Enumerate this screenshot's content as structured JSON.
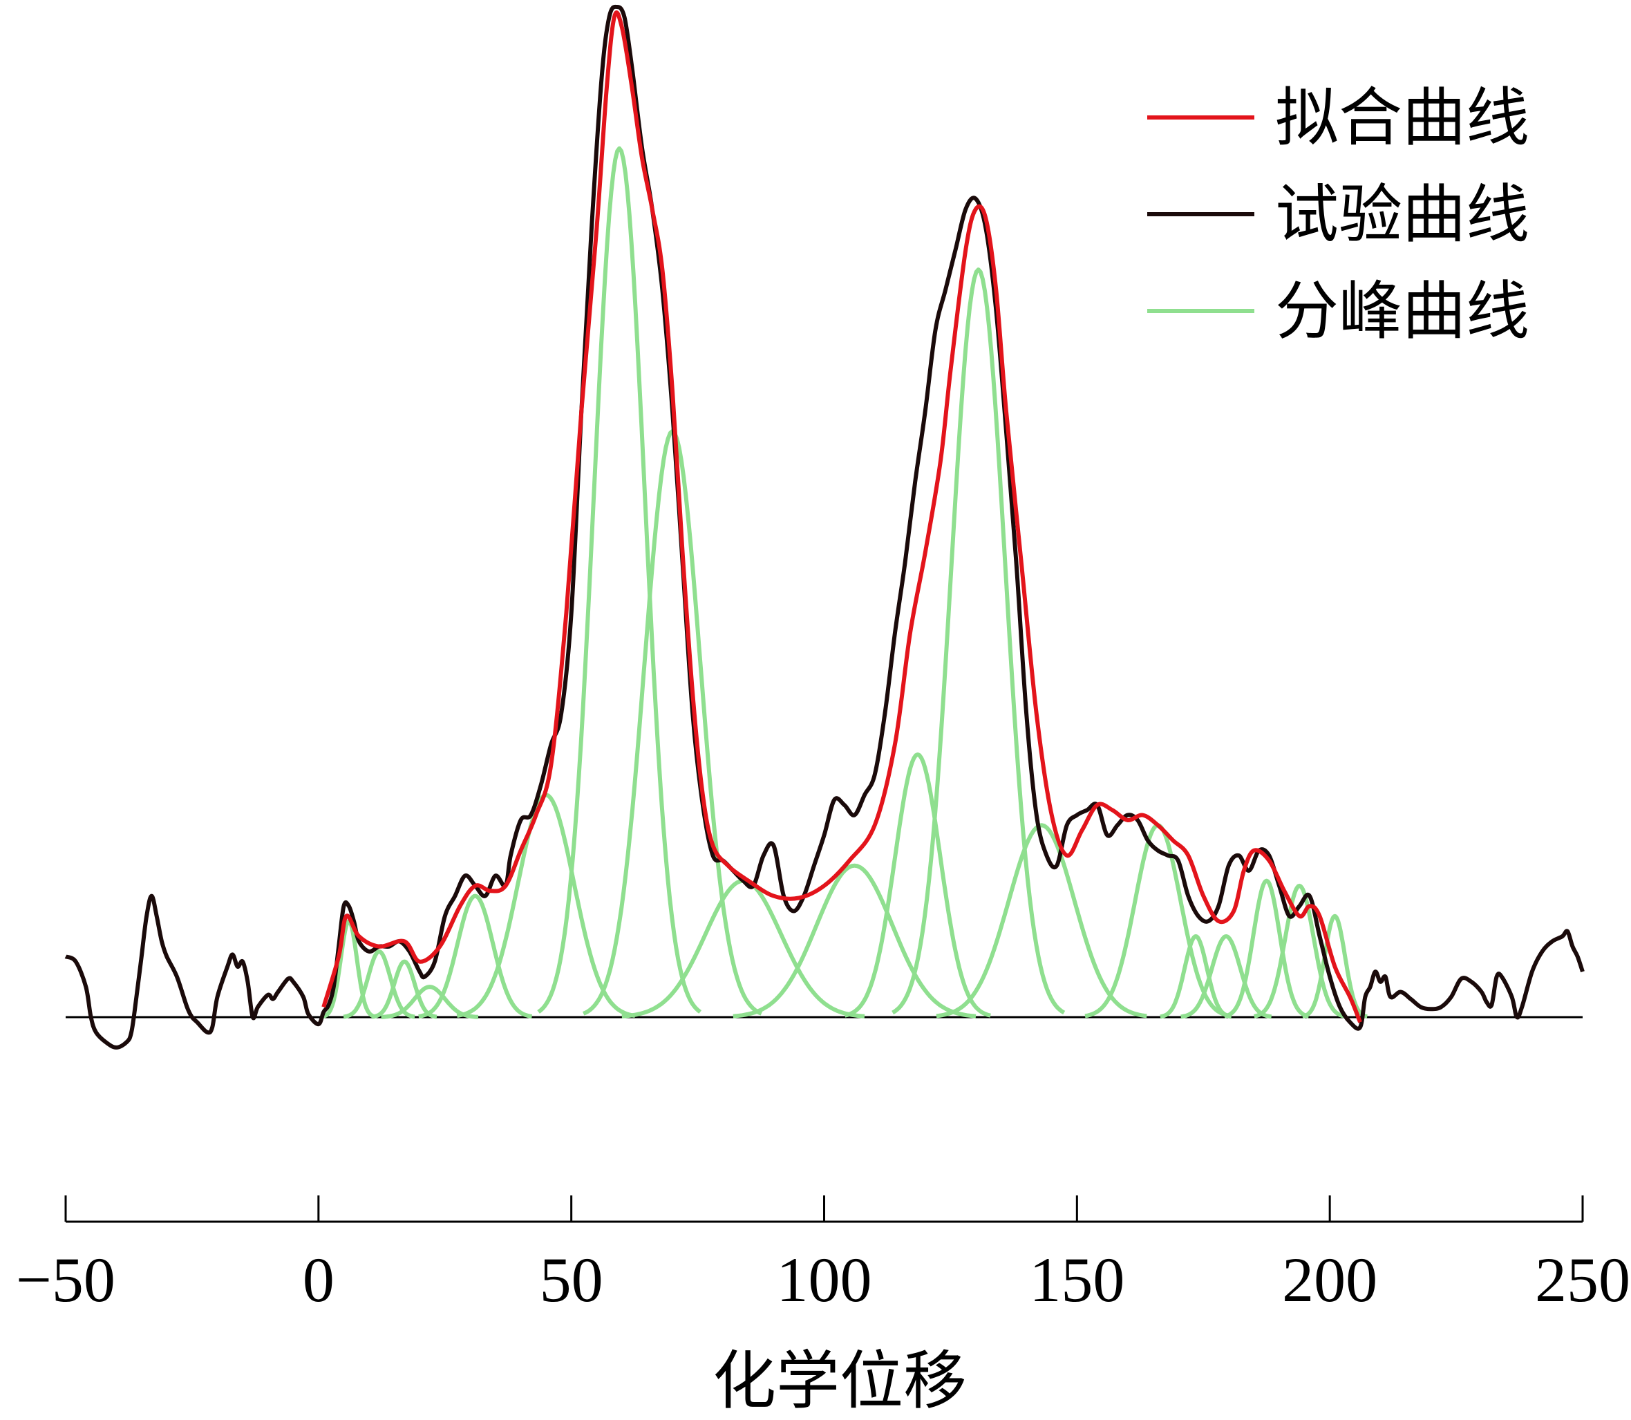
{
  "chart_data": {
    "type": "line",
    "title": "",
    "xlabel": "化学位移",
    "ylabel": "",
    "xlim": [
      -50,
      250
    ],
    "xticks": [
      -50,
      0,
      50,
      100,
      150,
      200,
      250
    ],
    "xtick_labels": [
      "−50",
      "0",
      "50",
      "100",
      "150",
      "200",
      "250"
    ],
    "ylim": [
      -0.05,
      1.02
    ],
    "grid": false,
    "legend_position": "top-right",
    "series": [
      {
        "name": "拟合曲线",
        "color": "#e3141b",
        "points": [
          [
            1,
            0.01
          ],
          [
            4,
            0.06
          ],
          [
            5.5,
            0.1
          ],
          [
            8,
            0.08
          ],
          [
            12,
            0.07
          ],
          [
            17,
            0.075
          ],
          [
            20,
            0.055
          ],
          [
            24,
            0.07
          ],
          [
            28,
            0.11
          ],
          [
            31,
            0.13
          ],
          [
            34,
            0.125
          ],
          [
            37,
            0.13
          ],
          [
            40,
            0.165
          ],
          [
            43,
            0.2
          ],
          [
            46,
            0.25
          ],
          [
            49,
            0.4
          ],
          [
            52,
            0.6
          ],
          [
            55,
            0.78
          ],
          [
            57,
            0.92
          ],
          [
            58.5,
            0.99
          ],
          [
            60,
            0.98
          ],
          [
            62,
            0.92
          ],
          [
            64,
            0.85
          ],
          [
            66,
            0.8
          ],
          [
            68,
            0.74
          ],
          [
            70,
            0.62
          ],
          [
            72,
            0.46
          ],
          [
            74,
            0.32
          ],
          [
            76,
            0.22
          ],
          [
            78,
            0.17
          ],
          [
            81,
            0.15
          ],
          [
            85,
            0.135
          ],
          [
            90,
            0.12
          ],
          [
            95,
            0.118
          ],
          [
            100,
            0.13
          ],
          [
            105,
            0.155
          ],
          [
            110,
            0.19
          ],
          [
            114,
            0.27
          ],
          [
            117,
            0.38
          ],
          [
            120,
            0.46
          ],
          [
            123,
            0.55
          ],
          [
            125,
            0.64
          ],
          [
            128,
            0.76
          ],
          [
            130,
            0.8
          ],
          [
            132,
            0.79
          ],
          [
            134,
            0.72
          ],
          [
            136,
            0.6
          ],
          [
            139,
            0.45
          ],
          [
            142,
            0.3
          ],
          [
            145,
            0.2
          ],
          [
            148,
            0.16
          ],
          [
            151,
            0.185
          ],
          [
            154,
            0.21
          ],
          [
            157,
            0.205
          ],
          [
            160,
            0.195
          ],
          [
            163,
            0.2
          ],
          [
            166,
            0.19
          ],
          [
            169,
            0.175
          ],
          [
            172,
            0.16
          ],
          [
            175,
            0.12
          ],
          [
            178,
            0.095
          ],
          [
            181,
            0.105
          ],
          [
            183,
            0.145
          ],
          [
            185,
            0.165
          ],
          [
            188,
            0.155
          ],
          [
            191,
            0.125
          ],
          [
            194,
            0.1
          ],
          [
            196,
            0.11
          ],
          [
            198,
            0.1
          ],
          [
            201,
            0.05
          ],
          [
            204,
            0.02
          ],
          [
            206,
            -0.005
          ]
        ]
      },
      {
        "name": "试验曲线",
        "color": "#1a0a0a",
        "points": [
          [
            -50,
            0.06
          ],
          [
            -48,
            0.055
          ],
          [
            -46,
            0.03
          ],
          [
            -45,
            0.0
          ],
          [
            -44,
            -0.015
          ],
          [
            -42,
            -0.025
          ],
          [
            -40,
            -0.03
          ],
          [
            -38,
            -0.025
          ],
          [
            -37,
            -0.015
          ],
          [
            -36,
            0.02
          ],
          [
            -35,
            0.06
          ],
          [
            -34,
            0.1
          ],
          [
            -33,
            0.12
          ],
          [
            -32,
            0.1
          ],
          [
            -31,
            0.075
          ],
          [
            -30,
            0.06
          ],
          [
            -28,
            0.04
          ],
          [
            -26,
            0.01
          ],
          [
            -25,
            0.0
          ],
          [
            -24,
            -0.005
          ],
          [
            -22,
            -0.015
          ],
          [
            -21,
            -0.01
          ],
          [
            -20,
            0.02
          ],
          [
            -18,
            0.05
          ],
          [
            -17,
            0.062
          ],
          [
            -16,
            0.05
          ],
          [
            -15,
            0.055
          ],
          [
            -14,
            0.035
          ],
          [
            -13,
            0.0
          ],
          [
            -12,
            0.01
          ],
          [
            -10,
            0.022
          ],
          [
            -9,
            0.018
          ],
          [
            -8,
            0.025
          ],
          [
            -6,
            0.038
          ],
          [
            -5,
            0.035
          ],
          [
            -3,
            0.02
          ],
          [
            -2,
            0.003
          ],
          [
            0,
            -0.007
          ],
          [
            1,
            0.005
          ],
          [
            2,
            0.012
          ],
          [
            3,
            0.03
          ],
          [
            4,
            0.07
          ],
          [
            5,
            0.11
          ],
          [
            6,
            0.11
          ],
          [
            7,
            0.095
          ],
          [
            8,
            0.075
          ],
          [
            10,
            0.065
          ],
          [
            12,
            0.07
          ],
          [
            14,
            0.07
          ],
          [
            16,
            0.075
          ],
          [
            18,
            0.065
          ],
          [
            20,
            0.045
          ],
          [
            21,
            0.04
          ],
          [
            23,
            0.055
          ],
          [
            25,
            0.1
          ],
          [
            27,
            0.12
          ],
          [
            29,
            0.14
          ],
          [
            31,
            0.13
          ],
          [
            33,
            0.12
          ],
          [
            35,
            0.14
          ],
          [
            37,
            0.13
          ],
          [
            38,
            0.16
          ],
          [
            40,
            0.195
          ],
          [
            42,
            0.2
          ],
          [
            44,
            0.23
          ],
          [
            46,
            0.27
          ],
          [
            48,
            0.3
          ],
          [
            50,
            0.4
          ],
          [
            52,
            0.6
          ],
          [
            54,
            0.78
          ],
          [
            56,
            0.93
          ],
          [
            57.5,
            0.99
          ],
          [
            59,
            1.0
          ],
          [
            60.5,
            0.99
          ],
          [
            62,
            0.94
          ],
          [
            64,
            0.86
          ],
          [
            66,
            0.8
          ],
          [
            68,
            0.72
          ],
          [
            70,
            0.6
          ],
          [
            72,
            0.45
          ],
          [
            74,
            0.3
          ],
          [
            76,
            0.21
          ],
          [
            78,
            0.16
          ],
          [
            80,
            0.155
          ],
          [
            82,
            0.145
          ],
          [
            84,
            0.135
          ],
          [
            86,
            0.13
          ],
          [
            88,
            0.16
          ],
          [
            90,
            0.17
          ],
          [
            92,
            0.12
          ],
          [
            94,
            0.105
          ],
          [
            96,
            0.12
          ],
          [
            98,
            0.15
          ],
          [
            100,
            0.18
          ],
          [
            102,
            0.215
          ],
          [
            104,
            0.21
          ],
          [
            106,
            0.2
          ],
          [
            108,
            0.22
          ],
          [
            110,
            0.24
          ],
          [
            112,
            0.3
          ],
          [
            114,
            0.38
          ],
          [
            116,
            0.45
          ],
          [
            118,
            0.53
          ],
          [
            120,
            0.6
          ],
          [
            122,
            0.68
          ],
          [
            124,
            0.72
          ],
          [
            126,
            0.76
          ],
          [
            128,
            0.8
          ],
          [
            130,
            0.81
          ],
          [
            132,
            0.78
          ],
          [
            134,
            0.7
          ],
          [
            136,
            0.58
          ],
          [
            138,
            0.45
          ],
          [
            140,
            0.3
          ],
          [
            142,
            0.2
          ],
          [
            144,
            0.16
          ],
          [
            146,
            0.15
          ],
          [
            148,
            0.19
          ],
          [
            150,
            0.2
          ],
          [
            152,
            0.205
          ],
          [
            154,
            0.21
          ],
          [
            156,
            0.18
          ],
          [
            158,
            0.19
          ],
          [
            160,
            0.2
          ],
          [
            162,
            0.195
          ],
          [
            164,
            0.175
          ],
          [
            166,
            0.165
          ],
          [
            168,
            0.16
          ],
          [
            170,
            0.155
          ],
          [
            172,
            0.12
          ],
          [
            174,
            0.1
          ],
          [
            176,
            0.095
          ],
          [
            178,
            0.11
          ],
          [
            180,
            0.15
          ],
          [
            182,
            0.16
          ],
          [
            184,
            0.145
          ],
          [
            186,
            0.165
          ],
          [
            188,
            0.16
          ],
          [
            190,
            0.13
          ],
          [
            192,
            0.1
          ],
          [
            194,
            0.11
          ],
          [
            196,
            0.12
          ],
          [
            198,
            0.08
          ],
          [
            200,
            0.04
          ],
          [
            202,
            0.01
          ],
          [
            204,
            -0.005
          ],
          [
            206,
            -0.01
          ],
          [
            207,
            0.02
          ],
          [
            208,
            0.03
          ],
          [
            209,
            0.045
          ],
          [
            210,
            0.035
          ],
          [
            211,
            0.04
          ],
          [
            212,
            0.02
          ],
          [
            214,
            0.025
          ],
          [
            216,
            0.018
          ],
          [
            218,
            0.01
          ],
          [
            220,
            0.008
          ],
          [
            222,
            0.01
          ],
          [
            224,
            0.02
          ],
          [
            226,
            0.038
          ],
          [
            228,
            0.035
          ],
          [
            230,
            0.025
          ],
          [
            231,
            0.015
          ],
          [
            232,
            0.012
          ],
          [
            233,
            0.04
          ],
          [
            234,
            0.04
          ],
          [
            236,
            0.02
          ],
          [
            237,
            0.0
          ],
          [
            238,
            0.01
          ],
          [
            240,
            0.045
          ],
          [
            242,
            0.065
          ],
          [
            244,
            0.075
          ],
          [
            246,
            0.08
          ],
          [
            247,
            0.085
          ],
          [
            248,
            0.07
          ],
          [
            249,
            0.06
          ],
          [
            250,
            0.045
          ]
        ]
      },
      {
        "name": "分峰曲线",
        "color": "#8fdf8f",
        "peaks": [
          {
            "center": 6,
            "height": 0.095,
            "sigma": 1.6
          },
          {
            "center": 12,
            "height": 0.065,
            "sigma": 2.2
          },
          {
            "center": 17,
            "height": 0.055,
            "sigma": 2.0
          },
          {
            "center": 22,
            "height": 0.03,
            "sigma": 3.0
          },
          {
            "center": 31,
            "height": 0.12,
            "sigma": 3.5
          },
          {
            "center": 45,
            "height": 0.22,
            "sigma": 5.5
          },
          {
            "center": 59.5,
            "height": 0.86,
            "sigma": 5.0
          },
          {
            "center": 70,
            "height": 0.58,
            "sigma": 5.5
          },
          {
            "center": 84,
            "height": 0.135,
            "sigma": 7.5
          },
          {
            "center": 106,
            "height": 0.15,
            "sigma": 7.5
          },
          {
            "center": 118.5,
            "height": 0.26,
            "sigma": 4.5
          },
          {
            "center": 130.5,
            "height": 0.74,
            "sigma": 5.3
          },
          {
            "center": 143,
            "height": 0.19,
            "sigma": 6.5
          },
          {
            "center": 166,
            "height": 0.19,
            "sigma": 4.5
          },
          {
            "center": 173.5,
            "height": 0.08,
            "sigma": 2.2
          },
          {
            "center": 179.5,
            "height": 0.08,
            "sigma": 2.8
          },
          {
            "center": 187.5,
            "height": 0.135,
            "sigma": 2.6
          },
          {
            "center": 194,
            "height": 0.13,
            "sigma": 2.8
          },
          {
            "center": 201,
            "height": 0.1,
            "sigma": 2.0
          }
        ]
      }
    ]
  }
}
